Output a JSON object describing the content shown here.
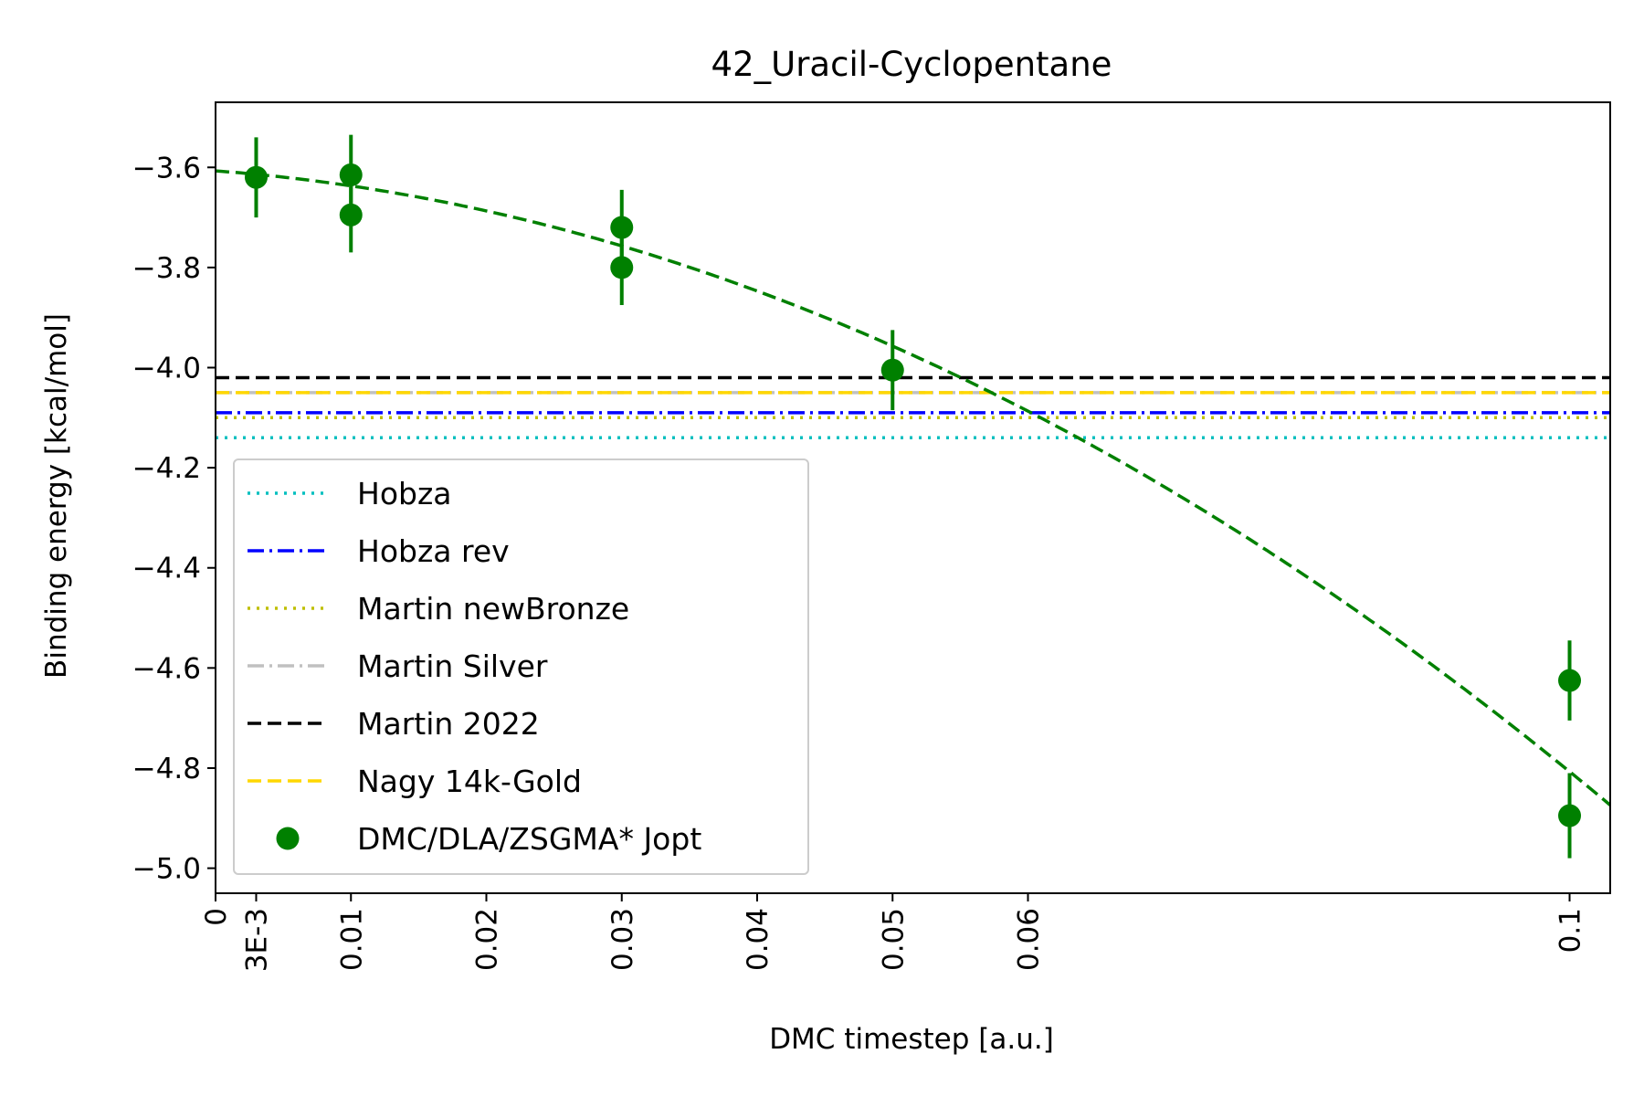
{
  "chart_data": {
    "type": "scatter",
    "title": "42_Uracil-Cyclopentane",
    "xlabel": "DMC timestep [a.u.]",
    "ylabel": "Binding energy [kcal/mol]",
    "xlim": [
      0,
      0.103
    ],
    "ylim": [
      -5.05,
      -3.47
    ],
    "xticks": [
      {
        "value": 0,
        "label": "0"
      },
      {
        "value": 0.003,
        "label": "3E-3"
      },
      {
        "value": 0.01,
        "label": "0.01"
      },
      {
        "value": 0.02,
        "label": "0.02"
      },
      {
        "value": 0.03,
        "label": "0.03"
      },
      {
        "value": 0.04,
        "label": "0.04"
      },
      {
        "value": 0.05,
        "label": "0.05"
      },
      {
        "value": 0.06,
        "label": "0.06"
      },
      {
        "value": 0.1,
        "label": "0.1"
      }
    ],
    "yticks": [
      {
        "value": -3.6,
        "label": "−3.6"
      },
      {
        "value": -3.8,
        "label": "−3.8"
      },
      {
        "value": -4.0,
        "label": "−4.0"
      },
      {
        "value": -4.2,
        "label": "−4.2"
      },
      {
        "value": -4.4,
        "label": "−4.4"
      },
      {
        "value": -4.6,
        "label": "−4.6"
      },
      {
        "value": -4.8,
        "label": "−4.8"
      },
      {
        "value": -5.0,
        "label": "−5.0"
      }
    ],
    "reference_lines": [
      {
        "name": "Hobza",
        "value": -4.14,
        "color": "#00bfbf",
        "style": "dotted"
      },
      {
        "name": "Hobza rev",
        "value": -4.09,
        "color": "#0000ff",
        "style": "dashdot"
      },
      {
        "name": "Martin newBronze",
        "value": -4.1,
        "color": "#bfbf00",
        "style": "dotted"
      },
      {
        "name": "Martin Silver",
        "value": -4.05,
        "color": "#c0c0c0",
        "style": "dashdot"
      },
      {
        "name": "Martin 2022",
        "value": -4.02,
        "color": "#000000",
        "style": "dashed"
      },
      {
        "name": "Nagy 14k-Gold",
        "value": -4.05,
        "color": "#ffd700",
        "style": "dashed"
      }
    ],
    "series": [
      {
        "name": "DMC/DLA/ZSGMA* Jopt",
        "color": "#008000",
        "points": [
          {
            "x": 0.003,
            "y": -3.62,
            "err": 0.08
          },
          {
            "x": 0.01,
            "y": -3.615,
            "err": 0.08
          },
          {
            "x": 0.01,
            "y": -3.695,
            "err": 0.075
          },
          {
            "x": 0.03,
            "y": -3.72,
            "err": 0.075
          },
          {
            "x": 0.03,
            "y": -3.8,
            "err": 0.075
          },
          {
            "x": 0.05,
            "y": -4.005,
            "err": 0.08
          },
          {
            "x": 0.1,
            "y": -4.625,
            "err": 0.08
          },
          {
            "x": 0.1,
            "y": -4.895,
            "err": 0.085
          }
        ]
      }
    ],
    "fit": {
      "type": "quadratic",
      "coeffs": [
        -3.607,
        -2.0,
        -100.0
      ],
      "color": "#008000",
      "style": "dashed"
    },
    "legend": {
      "position": "lower-left",
      "entries": [
        {
          "label": "Hobza",
          "color": "#00bfbf",
          "style": "dotted",
          "marker": "line"
        },
        {
          "label": "Hobza rev",
          "color": "#0000ff",
          "style": "dashdot",
          "marker": "line"
        },
        {
          "label": "Martin newBronze",
          "color": "#bfbf00",
          "style": "dotted",
          "marker": "line"
        },
        {
          "label": "Martin Silver",
          "color": "#c0c0c0",
          "style": "dashdot",
          "marker": "line"
        },
        {
          "label": "Martin 2022",
          "color": "#000000",
          "style": "dashed",
          "marker": "line"
        },
        {
          "label": "Nagy 14k-Gold",
          "color": "#ffd700",
          "style": "dashed",
          "marker": "line"
        },
        {
          "label": "DMC/DLA/ZSGMA* Jopt",
          "color": "#008000",
          "style": "none",
          "marker": "circle"
        }
      ]
    }
  }
}
